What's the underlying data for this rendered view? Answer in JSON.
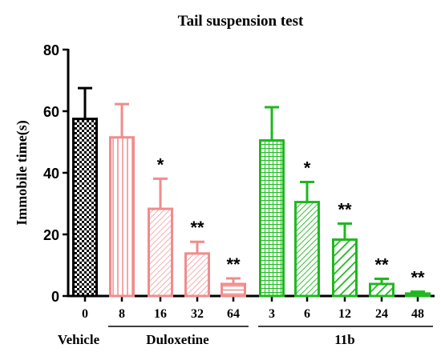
{
  "chart_data": {
    "type": "bar",
    "title": "Tail suspension test",
    "ylabel": "Immobile time(s)",
    "xlabel": "",
    "ylim": [
      0,
      80
    ],
    "yticks": [
      0,
      20,
      40,
      60,
      80
    ],
    "grid": false,
    "legend": "none",
    "categories": [
      "0",
      "8",
      "16",
      "32",
      "64",
      "3",
      "6",
      "12",
      "24",
      "48"
    ],
    "values": [
      57.5,
      51.5,
      28.3,
      13.8,
      3.9,
      50.5,
      30.5,
      18.3,
      3.9,
      0.8
    ],
    "errors": [
      10.0,
      10.8,
      9.8,
      3.8,
      1.8,
      10.8,
      6.5,
      5.2,
      1.7,
      0.6
    ],
    "significance": [
      "",
      "",
      "*",
      "**",
      "**",
      "",
      "*",
      "**",
      "**",
      "**"
    ],
    "groups": [
      {
        "label": "Vehicle",
        "start": 0,
        "end": 0,
        "underline": false
      },
      {
        "label": "Duloxetine",
        "start": 1,
        "end": 4,
        "underline": true
      },
      {
        "label": "11b",
        "start": 5,
        "end": 9,
        "underline": true
      }
    ],
    "colors": {
      "vehicle": "#000000",
      "duloxetine": "#f08c8c",
      "compound_11b": "#1fb81f",
      "axis": "#000000"
    },
    "patterns": [
      "checker",
      "vlines",
      "diag-thin",
      "diag-thin",
      "hlines",
      "grid",
      "diag-mid",
      "diag-thick",
      "diag-thick",
      "hlines"
    ]
  }
}
